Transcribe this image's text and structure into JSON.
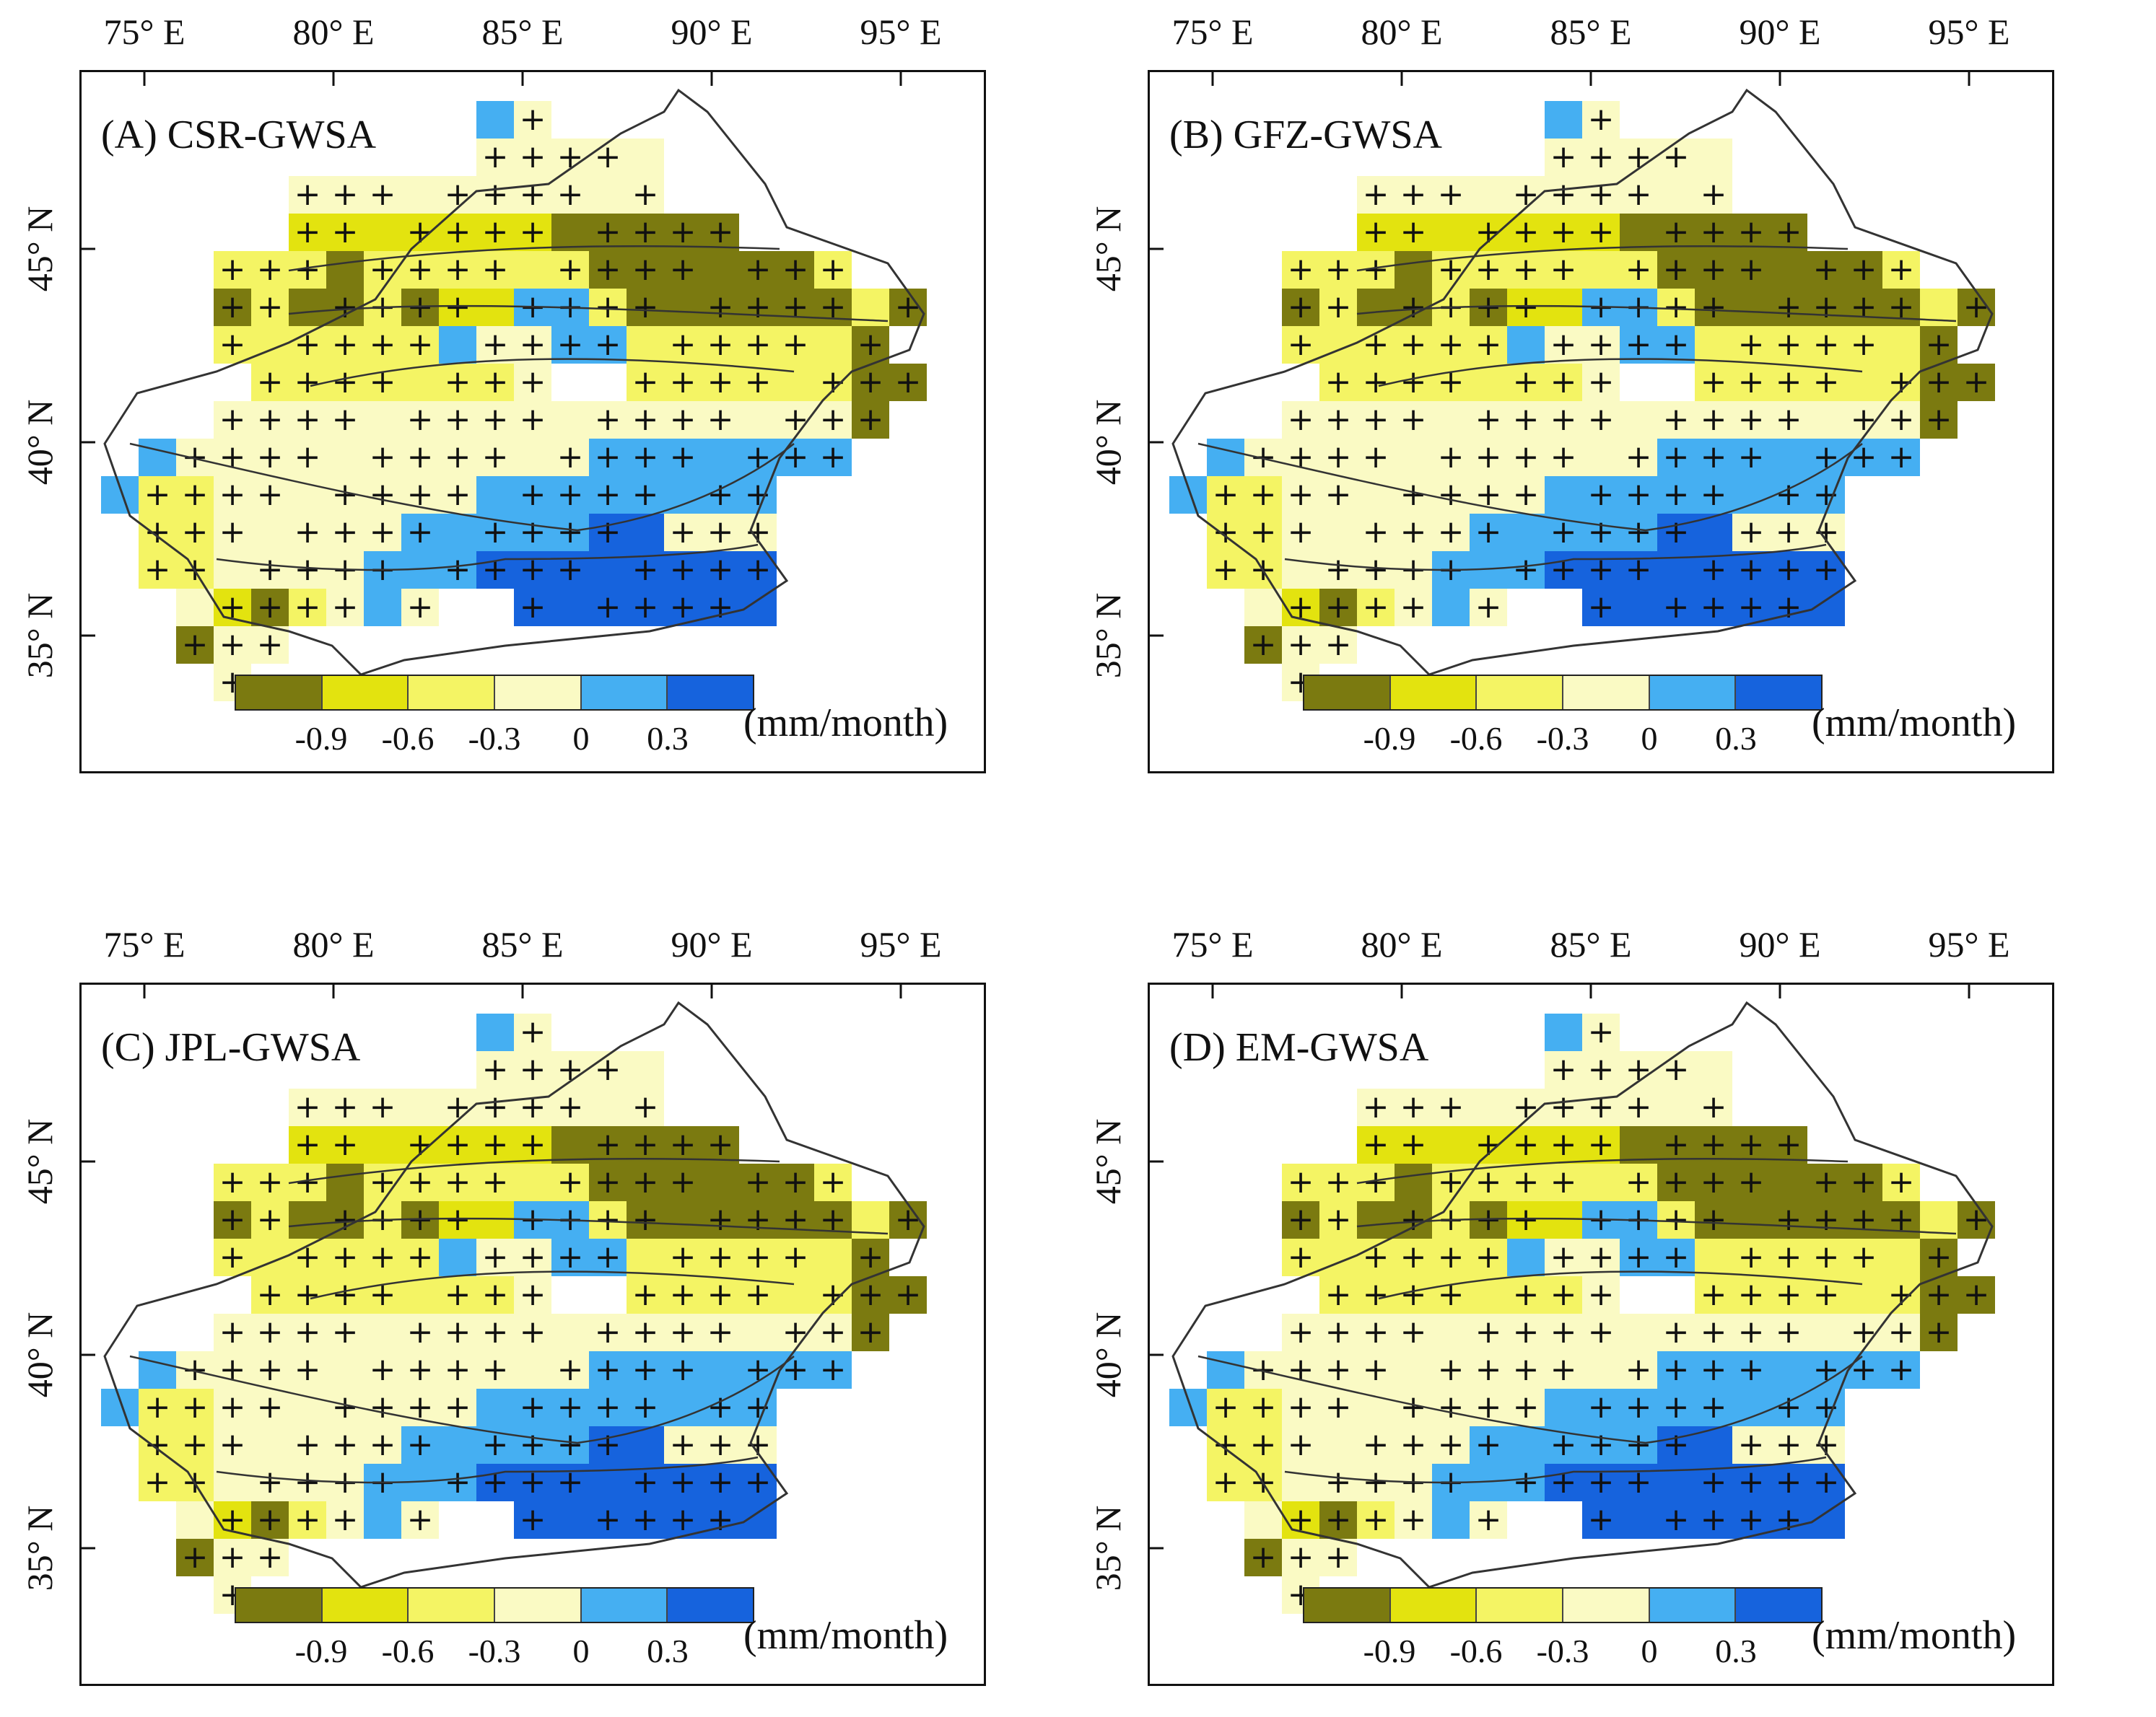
{
  "figure": {
    "units": "(mm/month)",
    "lon_labels": [
      "75° E",
      "80° E",
      "85° E",
      "90° E",
      "95° E"
    ],
    "lat_labels": [
      "45° N",
      "40° N",
      "35° N"
    ],
    "legend": {
      "ticks": [
        "-0.9",
        "-0.6",
        "-0.3",
        "0",
        "0.3"
      ],
      "colors": [
        "#7b7a10",
        "#e3e30f",
        "#f4f464",
        "#fafac4",
        "#45aff2",
        "#1663dd"
      ]
    },
    "symbol": "+"
  },
  "panels": [
    {
      "id": "A",
      "title": "(A) CSR-GWSA"
    },
    {
      "id": "B",
      "title": "(B) GFZ-GWSA"
    },
    {
      "id": "C",
      "title": "(C) JPL-GWSA"
    },
    {
      "id": "D",
      "title": "(D) EM-GWSA"
    }
  ]
}
